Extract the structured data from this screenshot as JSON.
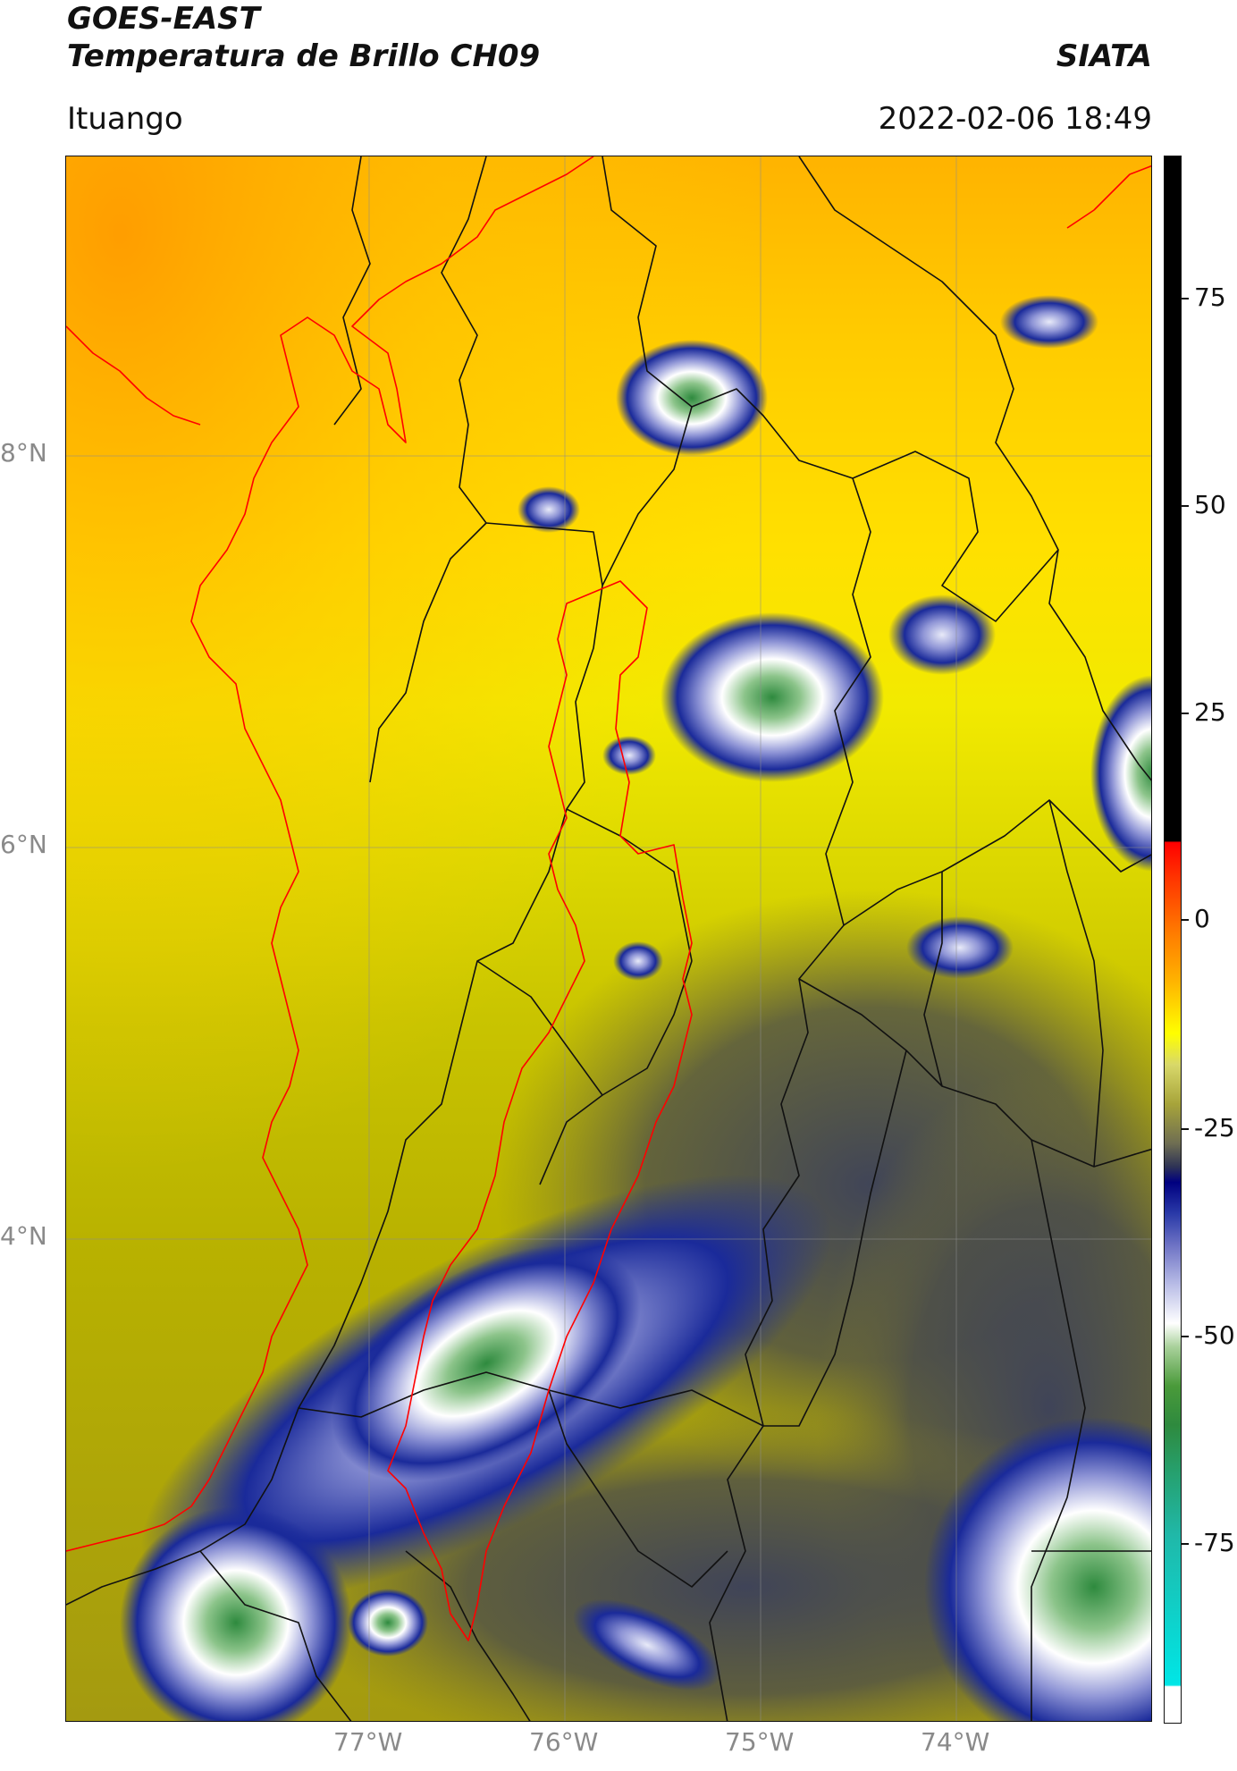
{
  "header": {
    "title_line1": "GOES-EAST",
    "title_line2": "Temperatura de Brillo CH09",
    "organization": "SIATA",
    "region": "Ituango",
    "datetime": "2022-02-06 18:49"
  },
  "map": {
    "lat_labels": [
      "8°N",
      "6°N",
      "4°N"
    ],
    "lon_labels": [
      "77°W",
      "76°W",
      "75°W",
      "74°W"
    ],
    "colors": {
      "warm": "#ffb000",
      "mid": "#ffe600",
      "olive": "#8f8d35",
      "cold": "#000080",
      "coldest": "#2e8a3e",
      "political_boundary": "#111111",
      "coast_and_basin": "#ff0000"
    }
  },
  "colorbar": {
    "ticks": [
      "75",
      "50",
      "25",
      "0",
      "-25",
      "-50",
      "-75"
    ],
    "tick_values": [
      75,
      50,
      25,
      0,
      -25,
      -50,
      -75
    ],
    "range": [
      -95,
      92
    ]
  }
}
